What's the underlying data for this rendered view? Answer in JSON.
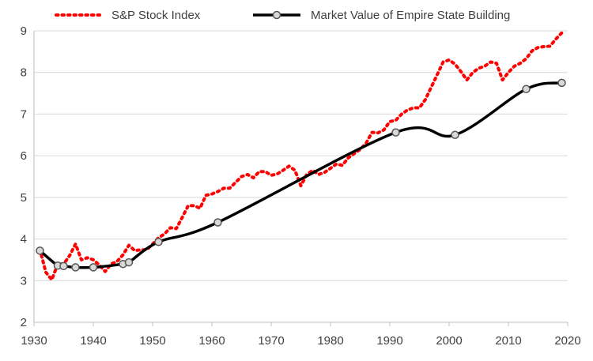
{
  "chart_data": {
    "type": "line",
    "title": "",
    "xlabel": "",
    "ylabel": "",
    "xlim": [
      1930,
      2020
    ],
    "ylim": [
      2,
      9
    ],
    "x_ticks": [
      "1930",
      "1940",
      "1950",
      "1960",
      "1970",
      "1980",
      "1990",
      "2000",
      "2010",
      "2020"
    ],
    "y_ticks": [
      "2",
      "3",
      "4",
      "5",
      "6",
      "7",
      "8",
      "9"
    ],
    "grid": "horizontal",
    "legend_position": "top",
    "series": [
      {
        "name": "S&P Stock Index",
        "style": "dotted",
        "color": "#ff0000",
        "points": [
          [
            1931,
            3.75
          ],
          [
            1932,
            3.2
          ],
          [
            1933,
            3.02
          ],
          [
            1934,
            3.4
          ],
          [
            1935,
            3.4
          ],
          [
            1936,
            3.6
          ],
          [
            1937,
            3.88
          ],
          [
            1938,
            3.5
          ],
          [
            1939,
            3.55
          ],
          [
            1940,
            3.5
          ],
          [
            1941,
            3.38
          ],
          [
            1942,
            3.22
          ],
          [
            1943,
            3.4
          ],
          [
            1944,
            3.46
          ],
          [
            1945,
            3.62
          ],
          [
            1946,
            3.85
          ],
          [
            1947,
            3.72
          ],
          [
            1948,
            3.74
          ],
          [
            1949,
            3.74
          ],
          [
            1950,
            3.88
          ],
          [
            1951,
            4.03
          ],
          [
            1952,
            4.12
          ],
          [
            1953,
            4.27
          ],
          [
            1954,
            4.25
          ],
          [
            1955,
            4.52
          ],
          [
            1956,
            4.8
          ],
          [
            1957,
            4.8
          ],
          [
            1958,
            4.74
          ],
          [
            1959,
            5.05
          ],
          [
            1960,
            5.08
          ],
          [
            1961,
            5.14
          ],
          [
            1962,
            5.22
          ],
          [
            1963,
            5.22
          ],
          [
            1964,
            5.36
          ],
          [
            1965,
            5.5
          ],
          [
            1966,
            5.55
          ],
          [
            1967,
            5.47
          ],
          [
            1968,
            5.62
          ],
          [
            1969,
            5.62
          ],
          [
            1970,
            5.53
          ],
          [
            1971,
            5.56
          ],
          [
            1972,
            5.65
          ],
          [
            1973,
            5.75
          ],
          [
            1974,
            5.65
          ],
          [
            1975,
            5.28
          ],
          [
            1976,
            5.55
          ],
          [
            1977,
            5.65
          ],
          [
            1978,
            5.55
          ],
          [
            1979,
            5.6
          ],
          [
            1980,
            5.7
          ],
          [
            1981,
            5.8
          ],
          [
            1982,
            5.77
          ],
          [
            1983,
            5.95
          ],
          [
            1984,
            6.05
          ],
          [
            1985,
            6.15
          ],
          [
            1986,
            6.3
          ],
          [
            1987,
            6.56
          ],
          [
            1988,
            6.55
          ],
          [
            1989,
            6.62
          ],
          [
            1990,
            6.82
          ],
          [
            1991,
            6.85
          ],
          [
            1992,
            7.0
          ],
          [
            1993,
            7.1
          ],
          [
            1994,
            7.15
          ],
          [
            1995,
            7.15
          ],
          [
            1996,
            7.35
          ],
          [
            1997,
            7.65
          ],
          [
            1998,
            7.95
          ],
          [
            1999,
            8.25
          ],
          [
            2000,
            8.3
          ],
          [
            2001,
            8.2
          ],
          [
            2002,
            8.02
          ],
          [
            2003,
            7.82
          ],
          [
            2004,
            8.0
          ],
          [
            2005,
            8.1
          ],
          [
            2006,
            8.15
          ],
          [
            2007,
            8.25
          ],
          [
            2008,
            8.22
          ],
          [
            2009,
            7.82
          ],
          [
            2010,
            8.0
          ],
          [
            2011,
            8.15
          ],
          [
            2012,
            8.22
          ],
          [
            2013,
            8.33
          ],
          [
            2014,
            8.52
          ],
          [
            2015,
            8.6
          ],
          [
            2016,
            8.62
          ],
          [
            2017,
            8.63
          ],
          [
            2018,
            8.8
          ],
          [
            2019,
            8.95
          ]
        ]
      },
      {
        "name": "Market Value of Empire State Building",
        "style": "solid-with-markers",
        "color": "#000000",
        "points": [
          [
            1931,
            3.72
          ],
          [
            1934,
            3.36
          ],
          [
            1935,
            3.35
          ],
          [
            1937,
            3.32
          ],
          [
            1940,
            3.32
          ],
          [
            1945,
            3.4
          ],
          [
            1946,
            3.44
          ],
          [
            1951,
            3.93
          ],
          [
            1961,
            4.4
          ],
          [
            1991,
            6.56
          ],
          [
            2001,
            6.5
          ],
          [
            2013,
            7.6
          ],
          [
            2019,
            7.75
          ]
        ]
      }
    ]
  }
}
